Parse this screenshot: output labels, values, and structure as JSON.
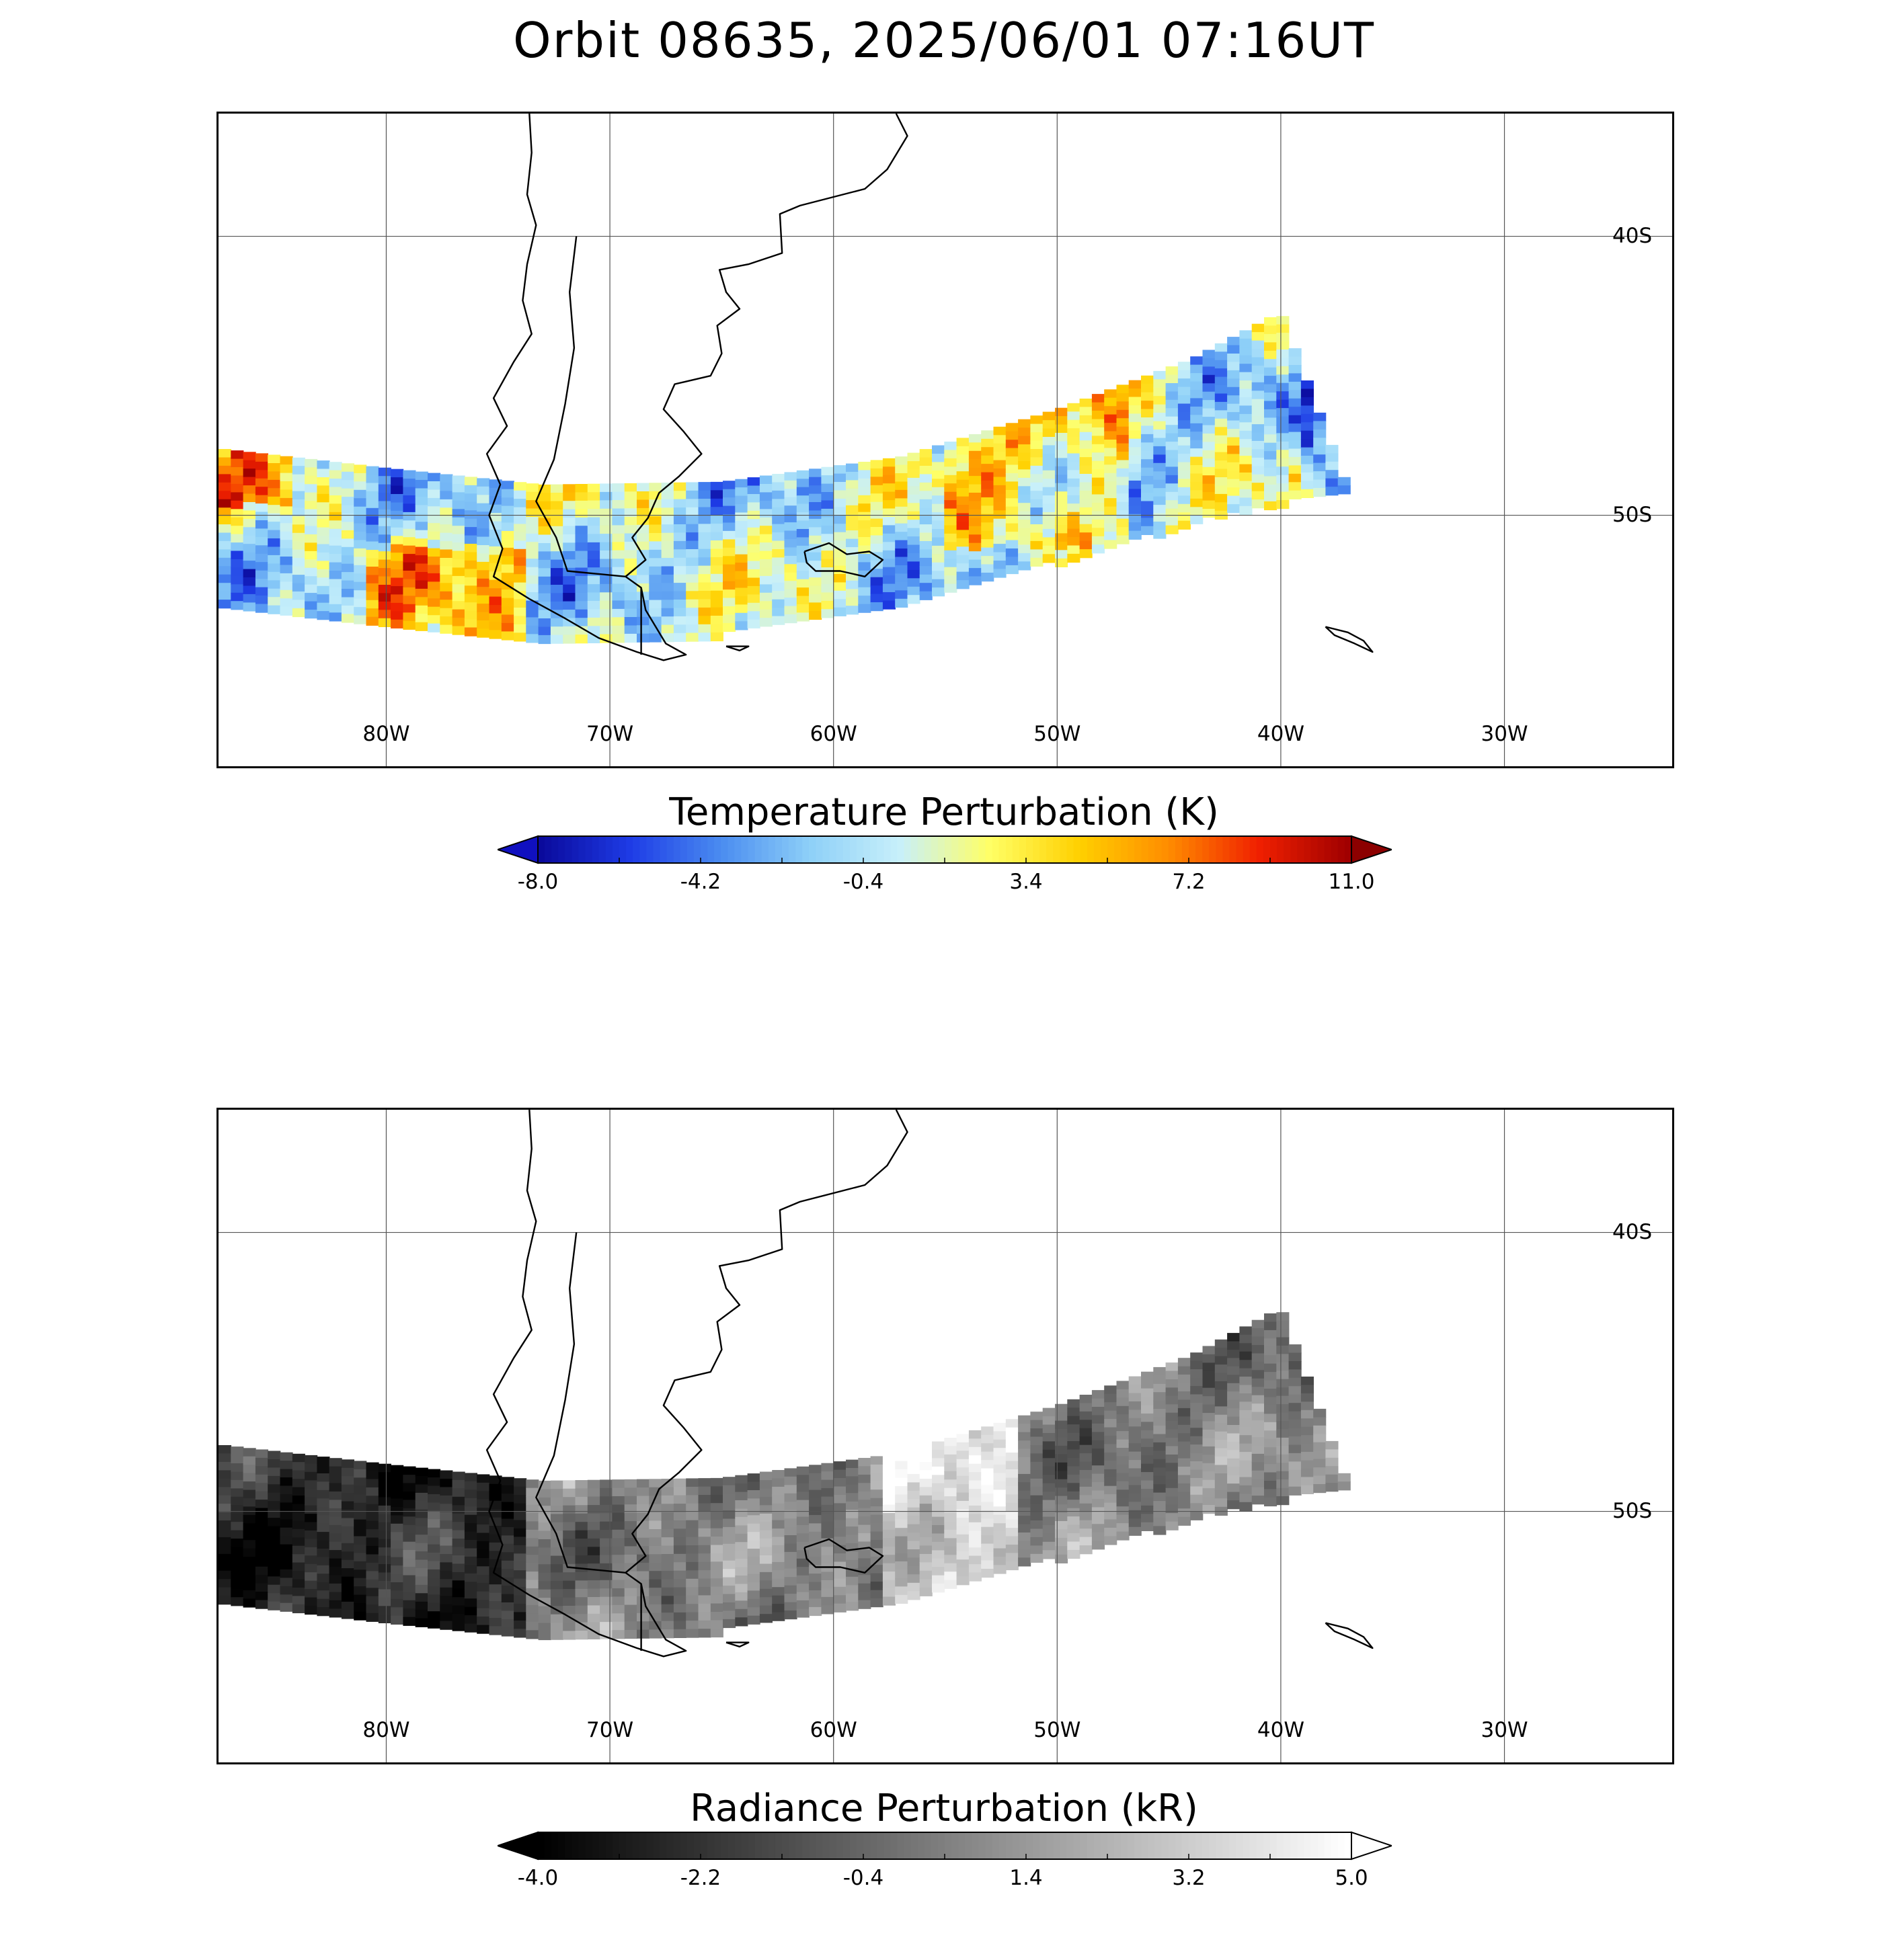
{
  "title": "Orbit 08635, 2025/06/01 07:16UT",
  "map": {
    "lon_min": -87.5,
    "lon_max": -22.5,
    "lat_top": -35.6,
    "lat_bottom": -59.0,
    "grid_lons": [
      -80,
      -70,
      -60,
      -50,
      -40,
      -30
    ],
    "grid_lats": [
      -40,
      -50
    ],
    "lon_labels": [
      "80W",
      "70W",
      "60W",
      "50W",
      "40W",
      "30W"
    ],
    "lat_labels": [
      "40S",
      "50S"
    ],
    "swath": {
      "west_lon": -87.5,
      "east_lon": -37.0,
      "north_edge": [
        [
          -87.5,
          -47.6
        ],
        [
          -80,
          -48.3
        ],
        [
          -73,
          -48.9
        ],
        [
          -65,
          -48.8
        ],
        [
          -57,
          -47.9
        ],
        [
          -50,
          -46.2
        ],
        [
          -44,
          -44.4
        ],
        [
          -40,
          -42.7
        ]
      ],
      "south_edge": [
        [
          -87.5,
          -53.1
        ],
        [
          -80,
          -54.0
        ],
        [
          -73,
          -54.4
        ],
        [
          -65,
          -54.2
        ],
        [
          -57,
          -53.1
        ],
        [
          -50,
          -51.6
        ],
        [
          -44,
          -50.2
        ],
        [
          -37,
          -49.0
        ]
      ]
    }
  },
  "panels": [
    {
      "id": "temperature",
      "colorbar_title": "Temperature Perturbation (K)",
      "colorbar_ticks": [
        "-8.0",
        "-4.2",
        "-0.4",
        "3.4",
        "7.2",
        "11.0"
      ],
      "range": [
        -8.0,
        11.0
      ],
      "colormap": [
        "#0a0a9c",
        "#1e3ce6",
        "#4a8cf0",
        "#8ed0f8",
        "#c8f0fa",
        "#ffff66",
        "#ffd000",
        "#ff8c00",
        "#f02000",
        "#a00000"
      ],
      "under_color": "#1010c0",
      "over_color": "#8c0000"
    },
    {
      "id": "radiance",
      "colorbar_title": "Radiance Perturbation (kR)",
      "colorbar_ticks": [
        "-4.0",
        "-2.2",
        "-0.4",
        "1.4",
        "3.2",
        "5.0"
      ],
      "range": [
        -4.0,
        5.0
      ],
      "colormap": [
        "#000000",
        "#ffffff"
      ],
      "under_color": "#000000",
      "over_color": "#ffffff"
    }
  ]
}
